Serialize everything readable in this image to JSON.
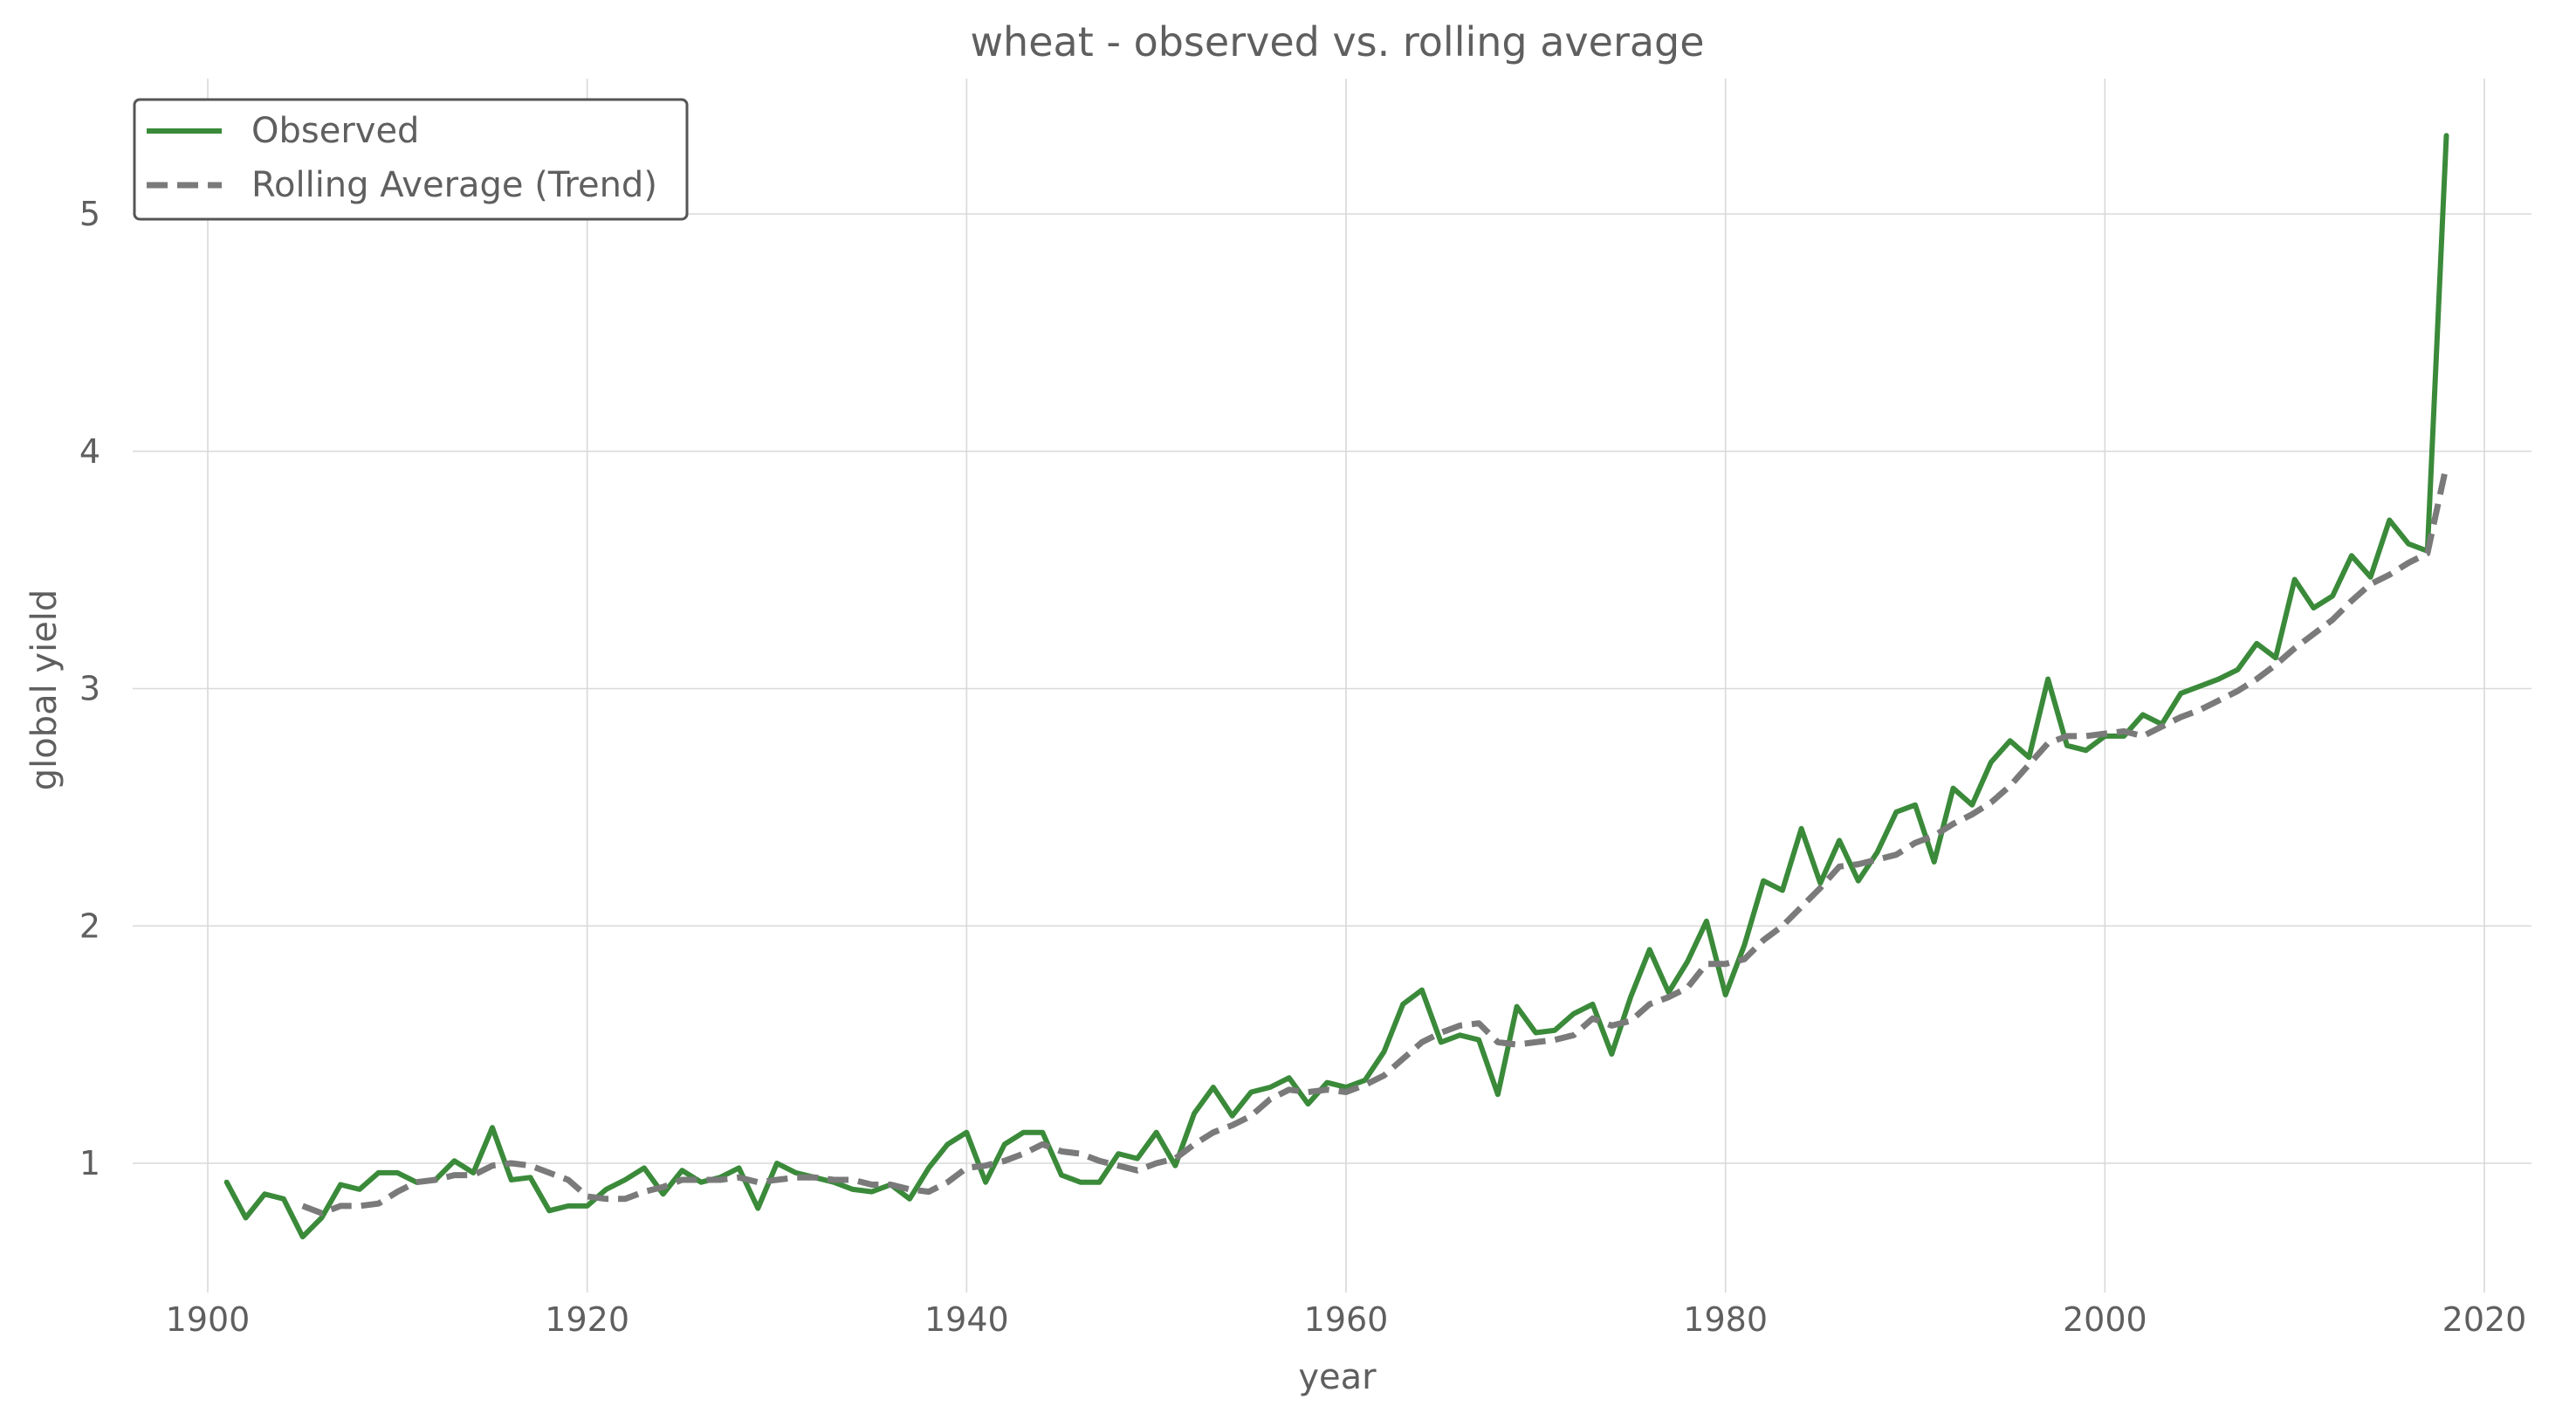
{
  "chart_data": {
    "type": "line",
    "title": "wheat - observed vs. rolling average",
    "xlabel": "year",
    "ylabel": "global yield",
    "xlim": [
      1895,
      2023
    ],
    "ylim": [
      0.45,
      5.55
    ],
    "x_ticks": [
      1900,
      1920,
      1940,
      1960,
      1980,
      2000,
      2020
    ],
    "y_ticks": [
      1,
      2,
      3,
      4,
      5
    ],
    "grid": true,
    "legend_position": "top-left",
    "series": [
      {
        "name": "Observed",
        "color": "#3a8a3a",
        "style": "solid",
        "x": [
          1901,
          1902,
          1903,
          1904,
          1905,
          1906,
          1907,
          1908,
          1909,
          1910,
          1911,
          1912,
          1913,
          1914,
          1915,
          1916,
          1917,
          1918,
          1919,
          1920,
          1921,
          1922,
          1923,
          1924,
          1925,
          1926,
          1927,
          1928,
          1929,
          1930,
          1931,
          1932,
          1933,
          1934,
          1935,
          1936,
          1937,
          1938,
          1939,
          1940,
          1941,
          1942,
          1943,
          1944,
          1945,
          1946,
          1947,
          1948,
          1949,
          1950,
          1951,
          1952,
          1953,
          1954,
          1955,
          1956,
          1957,
          1958,
          1959,
          1960,
          1961,
          1962,
          1963,
          1964,
          1965,
          1966,
          1967,
          1968,
          1969,
          1970,
          1971,
          1972,
          1973,
          1974,
          1975,
          1976,
          1977,
          1978,
          1979,
          1980,
          1981,
          1982,
          1983,
          1984,
          1985,
          1986,
          1987,
          1988,
          1989,
          1990,
          1991,
          1992,
          1993,
          1994,
          1995,
          1996,
          1997,
          1998,
          1999,
          2000,
          2001,
          2002,
          2003,
          2004,
          2005,
          2006,
          2007,
          2008,
          2009,
          2010,
          2011,
          2012,
          2013,
          2014,
          2015,
          2016,
          2017,
          2018
        ],
        "values": [
          0.92,
          0.77,
          0.87,
          0.85,
          0.69,
          0.77,
          0.91,
          0.89,
          0.96,
          0.96,
          0.92,
          0.93,
          1.01,
          0.96,
          1.15,
          0.93,
          0.94,
          0.8,
          0.82,
          0.82,
          0.89,
          0.93,
          0.98,
          0.87,
          0.97,
          0.92,
          0.94,
          0.98,
          0.81,
          1.0,
          0.96,
          0.94,
          0.92,
          0.89,
          0.88,
          0.91,
          0.85,
          0.98,
          1.08,
          1.13,
          0.92,
          1.08,
          1.13,
          1.13,
          0.95,
          0.92,
          0.92,
          1.04,
          1.02,
          1.13,
          0.99,
          1.21,
          1.32,
          1.2,
          1.3,
          1.32,
          1.36,
          1.25,
          1.34,
          1.32,
          1.35,
          1.47,
          1.67,
          1.73,
          1.51,
          1.54,
          1.52,
          1.29,
          1.66,
          1.55,
          1.56,
          1.63,
          1.67,
          1.46,
          1.7,
          1.9,
          1.72,
          1.85,
          2.02,
          1.71,
          1.92,
          2.19,
          2.15,
          2.41,
          2.18,
          2.36,
          2.19,
          2.31,
          2.48,
          2.51,
          2.27,
          2.58,
          2.51,
          2.69,
          2.78,
          2.71,
          3.04,
          2.76,
          2.74,
          2.8,
          2.8,
          2.89,
          2.85,
          2.98,
          3.01,
          3.04,
          3.08,
          3.19,
          3.13,
          3.46,
          3.34,
          3.39,
          3.56,
          3.47,
          3.71,
          3.61,
          3.58,
          5.33
        ]
      },
      {
        "name": "Rolling Average (Trend)",
        "color": "#7a7a7a",
        "style": "dashed",
        "x": [
          1905,
          1906,
          1907,
          1908,
          1909,
          1910,
          1911,
          1912,
          1913,
          1914,
          1915,
          1916,
          1917,
          1918,
          1919,
          1920,
          1921,
          1922,
          1923,
          1924,
          1925,
          1926,
          1927,
          1928,
          1929,
          1930,
          1931,
          1932,
          1933,
          1934,
          1935,
          1936,
          1937,
          1938,
          1939,
          1940,
          1941,
          1942,
          1943,
          1944,
          1945,
          1946,
          1947,
          1948,
          1949,
          1950,
          1951,
          1952,
          1953,
          1954,
          1955,
          1956,
          1957,
          1958,
          1959,
          1960,
          1961,
          1962,
          1963,
          1964,
          1965,
          1966,
          1967,
          1968,
          1969,
          1970,
          1971,
          1972,
          1973,
          1974,
          1975,
          1976,
          1977,
          1978,
          1979,
          1980,
          1981,
          1982,
          1983,
          1984,
          1985,
          1986,
          1987,
          1988,
          1989,
          1990,
          1991,
          1992,
          1993,
          1994,
          1995,
          1996,
          1997,
          1998,
          1999,
          2000,
          2001,
          2002,
          2003,
          2004,
          2005,
          2006,
          2007,
          2008,
          2009,
          2010,
          2011,
          2012,
          2013,
          2014,
          2015,
          2016,
          2017,
          2018
        ],
        "values": [
          0.82,
          0.79,
          0.82,
          0.82,
          0.83,
          0.88,
          0.92,
          0.93,
          0.95,
          0.95,
          0.99,
          1.0,
          0.99,
          0.96,
          0.93,
          0.86,
          0.85,
          0.85,
          0.88,
          0.9,
          0.93,
          0.93,
          0.93,
          0.94,
          0.92,
          0.93,
          0.94,
          0.94,
          0.93,
          0.93,
          0.91,
          0.91,
          0.89,
          0.88,
          0.92,
          0.98,
          0.99,
          1.01,
          1.04,
          1.08,
          1.05,
          1.04,
          1.01,
          0.99,
          0.97,
          1.0,
          1.02,
          1.08,
          1.13,
          1.16,
          1.2,
          1.27,
          1.31,
          1.3,
          1.31,
          1.3,
          1.33,
          1.37,
          1.44,
          1.51,
          1.55,
          1.58,
          1.59,
          1.51,
          1.5,
          1.51,
          1.52,
          1.54,
          1.61,
          1.58,
          1.6,
          1.67,
          1.7,
          1.74,
          1.84,
          1.84,
          1.86,
          1.94,
          2.0,
          2.08,
          2.16,
          2.25,
          2.26,
          2.28,
          2.3,
          2.35,
          2.38,
          2.43,
          2.47,
          2.52,
          2.59,
          2.68,
          2.77,
          2.8,
          2.8,
          2.81,
          2.82,
          2.8,
          2.84,
          2.88,
          2.91,
          2.95,
          2.99,
          3.04,
          3.1,
          3.17,
          3.23,
          3.29,
          3.37,
          3.44,
          3.48,
          3.53,
          3.57,
          3.94
        ]
      }
    ]
  }
}
